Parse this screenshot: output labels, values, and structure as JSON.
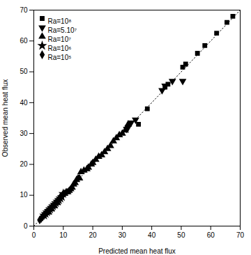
{
  "chart_data": {
    "type": "scatter",
    "title": "",
    "xlabel": "Predicted mean heat flux",
    "ylabel": "Observed mean heat flux",
    "xlim": [
      0,
      70
    ],
    "ylim": [
      0,
      70
    ],
    "xticks": [
      0,
      10,
      20,
      30,
      40,
      50,
      60,
      70
    ],
    "yticks": [
      0,
      10,
      20,
      30,
      40,
      50,
      60,
      70
    ],
    "legend": "upper left",
    "diagonal": {
      "x": [
        0,
        70
      ],
      "y": [
        0,
        70
      ],
      "line_style": "dotted",
      "color": "black"
    },
    "series": [
      {
        "name": "Ra=10⁸",
        "marker": "square",
        "color": "black",
        "x": [
          35.5,
          38.5,
          44.5,
          45.5,
          50.5,
          51.5,
          55.5,
          58.0,
          62.0,
          65.5,
          67.5
        ],
        "y": [
          33.0,
          38.0,
          45.0,
          46.0,
          51.5,
          52.5,
          56.0,
          58.5,
          62.5,
          66.0,
          68.0
        ]
      },
      {
        "name": "Ra=5.10⁷",
        "marker": "triangle-down",
        "color": "black",
        "x": [
          31.5,
          32.0,
          33.0,
          34.5,
          43.5,
          44.5,
          47.0,
          50.5
        ],
        "y": [
          31.5,
          32.0,
          33.5,
          34.5,
          44.0,
          45.5,
          47.0,
          47.0
        ]
      },
      {
        "name": "Ra=10⁷",
        "marker": "triangle-up",
        "color": "black",
        "x": [
          5.0,
          6.0,
          7.0,
          8.0,
          9.0,
          10.0,
          10.5,
          11.0,
          11.5,
          12.0,
          12.5,
          13.0,
          13.5,
          14.0,
          14.5,
          15.0,
          15.5,
          16.0,
          17.0,
          18.0,
          18.5,
          19.5,
          20.0,
          21.0,
          22.0,
          23.0,
          24.0,
          25.0,
          26.0,
          27.0,
          28.0,
          29.0,
          30.0,
          31.0,
          32.0
        ],
        "y": [
          4.5,
          5.5,
          6.5,
          7.5,
          9.5,
          10.5,
          10.5,
          11.0,
          11.0,
          11.5,
          12.0,
          12.5,
          13.5,
          14.0,
          15.0,
          15.5,
          15.5,
          17.5,
          18.0,
          18.5,
          19.0,
          20.0,
          20.5,
          21.5,
          22.5,
          23.0,
          24.0,
          25.0,
          26.0,
          27.5,
          28.5,
          29.5,
          30.0,
          31.0,
          33.0
        ]
      },
      {
        "name": "Ra=10⁶",
        "marker": "star",
        "color": "black",
        "x": [
          3.5,
          4.0,
          4.5,
          5.0,
          5.5,
          6.0,
          6.5,
          7.0,
          7.5,
          8.0,
          8.5,
          9.0,
          9.5,
          10.0
        ],
        "y": [
          3.5,
          4.0,
          4.5,
          5.0,
          5.5,
          6.0,
          6.5,
          7.0,
          7.5,
          8.0,
          8.5,
          9.0,
          9.5,
          10.5
        ]
      },
      {
        "name": "Ra=10⁵",
        "marker": "diamond",
        "color": "black",
        "x": [
          2.0,
          2.5,
          3.0,
          3.5,
          4.0,
          4.5,
          5.0,
          5.5
        ],
        "y": [
          2.0,
          2.5,
          3.0,
          3.5,
          4.0,
          4.5,
          5.0,
          5.5
        ]
      }
    ]
  }
}
